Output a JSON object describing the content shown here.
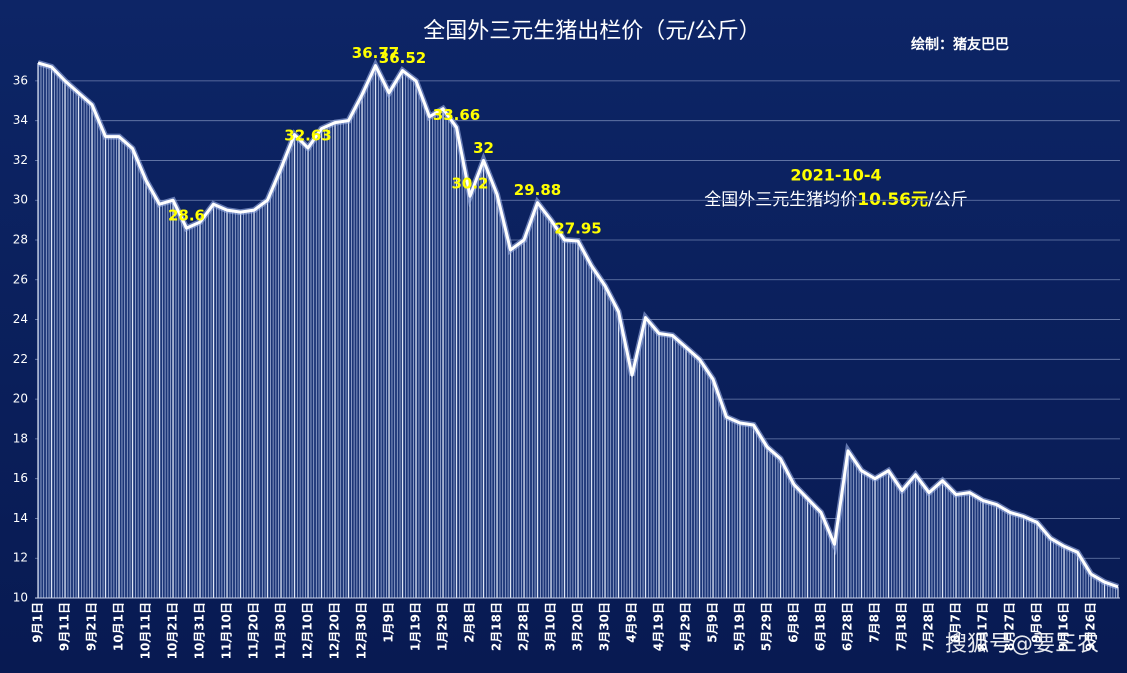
{
  "chart_data": {
    "type": "line",
    "title": "全国外三元生猪出栏价（元/公斤）",
    "source": "绘制：猪友巴巴",
    "note": {
      "date": "2021-10-4",
      "text": [
        "全国外三元生猪均价",
        "10.56元",
        "/公斤"
      ]
    },
    "watermark": "搜狐号@要三农",
    "categories": [
      "9月1日",
      null,
      "9月11日",
      null,
      "9月21日",
      null,
      "10月1日",
      null,
      "10月11日",
      null,
      "10月21日",
      null,
      "10月31日",
      null,
      "11月10日",
      null,
      "11月20日",
      null,
      "11月30日",
      null,
      "12月10日",
      null,
      "12月20日",
      null,
      "12月30日",
      null,
      "1月9日",
      null,
      "1月19日",
      null,
      "1月29日",
      null,
      "2月8日",
      null,
      "2月18日",
      null,
      "2月28日",
      null,
      "3月10日",
      null,
      "3月20日",
      null,
      "3月30日",
      null,
      "4月9日",
      null,
      "4月19日",
      null,
      "4月29日",
      null,
      "5月9日",
      null,
      "5月19日",
      null,
      "5月29日",
      null,
      "6月8日",
      null,
      "6月18日",
      null,
      "6月28日",
      null,
      "7月8日",
      null,
      "7月18日",
      null,
      "7月28日",
      null,
      "8月7日",
      null,
      "8月17日",
      null,
      "8月27日",
      null,
      "9月6日",
      null,
      "9月16日",
      null,
      "9月26日",
      null,
      null
    ],
    "series": [
      {
        "name": "全国外三元生猪出栏价",
        "color": "#ffffff",
        "values": [
          36.9,
          36.7,
          36.0,
          35.4,
          34.8,
          33.2,
          33.2,
          32.6,
          31.0,
          29.8,
          30.0,
          28.6,
          28.9,
          29.8,
          29.5,
          29.4,
          29.5,
          30.0,
          31.6,
          33.3,
          32.63,
          33.6,
          33.9,
          34.0,
          35.3,
          36.77,
          35.4,
          36.52,
          36.0,
          34.2,
          34.6,
          33.66,
          30.2,
          32,
          30.3,
          27.5,
          28.0,
          29.88,
          29.0,
          28.0,
          27.95,
          26.7,
          25.7,
          24.4,
          21.2,
          24.1,
          23.3,
          23.2,
          22.6,
          22.0,
          21.0,
          19.1,
          18.8,
          18.7,
          17.6,
          17.0,
          15.7,
          15.0,
          14.3,
          12.7,
          17.4,
          16.4,
          16.0,
          16.4,
          15.4,
          16.2,
          15.3,
          15.9,
          15.2,
          15.3,
          14.9,
          14.7,
          14.3,
          14.1,
          13.8,
          13.0,
          12.6,
          12.3,
          11.2,
          10.8,
          10.56
        ],
        "value_labels": [
          null,
          null,
          null,
          null,
          null,
          null,
          null,
          null,
          null,
          null,
          null,
          "28.6",
          null,
          null,
          null,
          null,
          null,
          null,
          null,
          null,
          "32.63",
          null,
          null,
          null,
          null,
          "36.77",
          null,
          "36.52",
          null,
          null,
          null,
          "33.66",
          "30.2",
          "32",
          null,
          null,
          null,
          "29.88",
          null,
          null,
          "27.95",
          null,
          null,
          null,
          null,
          null,
          null,
          null,
          null,
          null,
          null,
          null,
          null,
          null,
          null,
          null,
          null,
          null,
          null,
          null,
          null,
          null,
          null,
          null,
          null,
          null,
          null,
          null,
          null,
          null,
          null,
          null,
          null,
          null,
          null,
          null,
          null,
          null,
          null,
          null,
          null
        ]
      }
    ],
    "ylim": [
      10,
      37
    ],
    "yticks": [
      10,
      12,
      14,
      16,
      18,
      20,
      22,
      24,
      26,
      28,
      30,
      32,
      34,
      36
    ],
    "grid": true
  }
}
